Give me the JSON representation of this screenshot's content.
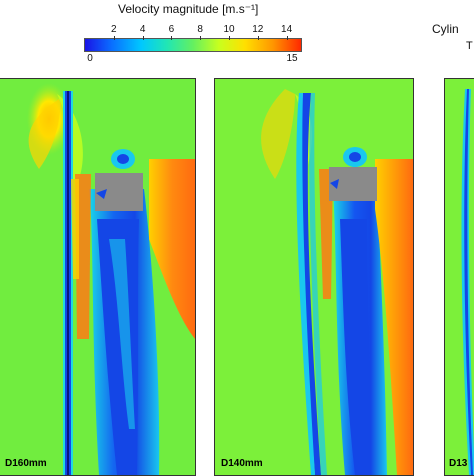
{
  "colorbar": {
    "title": "Velocity magnitude [m.s⁻¹]",
    "ticks": [
      "2",
      "4",
      "6",
      "8",
      "10",
      "12",
      "14"
    ],
    "min_label": "0",
    "max_label": "15",
    "min": 0,
    "max": 15,
    "colormap": [
      "#1a14e6",
      "#0a6cff",
      "#00c8ff",
      "#21e6b4",
      "#64f060",
      "#c8ff1e",
      "#ffe000",
      "#ff9600",
      "#ff2800"
    ]
  },
  "header": {
    "title_partial": "Cylin",
    "subtitle_partial": "T"
  },
  "panels": [
    {
      "label": "D160mm"
    },
    {
      "label": "D140mm"
    },
    {
      "label": "D13"
    }
  ],
  "colors": {
    "background_field": "#7cf03a",
    "low_velocity": "#1446e6",
    "high_velocity": "#ff7a14",
    "obstacle": "#8a8a8a"
  }
}
